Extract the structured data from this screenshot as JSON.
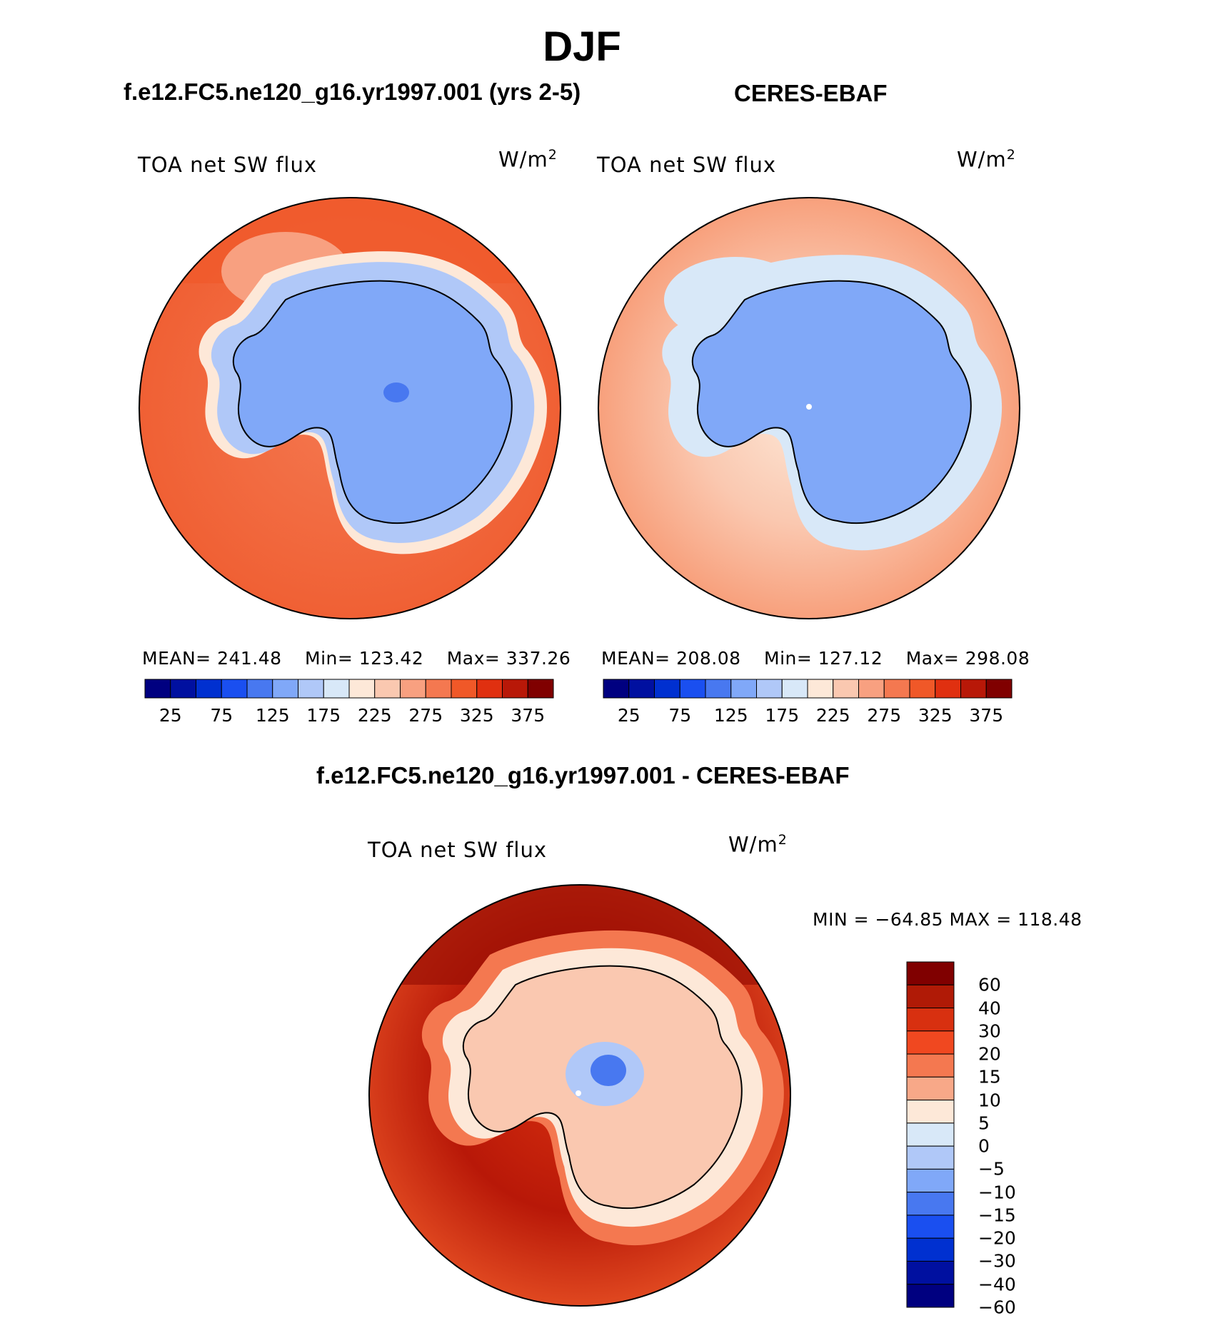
{
  "figure": {
    "title": "DJF",
    "panels": [
      {
        "id": "model",
        "title": "f.e12.FC5.ne120_g16.yr1997.001 (yrs 2-5)",
        "variable": "TOA net SW flux",
        "units_base": "W/m",
        "units_exp": "2",
        "stats": {
          "mean": "MEAN= 241.48",
          "min": "Min= 123.42",
          "max": "Max= 337.26"
        }
      },
      {
        "id": "obs",
        "title": "CERES-EBAF",
        "variable": "TOA net SW flux",
        "units_base": "W/m",
        "units_exp": "2",
        "stats": {
          "mean": "MEAN= 208.08",
          "min": "Min= 127.12",
          "max": "Max= 298.08"
        }
      },
      {
        "id": "diff",
        "title": "f.e12.FC5.ne120_g16.yr1997.001 - CERES-EBAF",
        "variable": "TOA net SW flux",
        "units_base": "W/m",
        "units_exp": "2",
        "range_text": "MIN = −64.85 MAX = 118.48"
      }
    ]
  },
  "chart_data": {
    "type": "heatmap",
    "projection": "south polar stereographic",
    "region": "Antarctica / Southern Ocean",
    "season": "DJF",
    "abs_colorbar": {
      "orientation": "horizontal",
      "tick_labels": [
        "25",
        "75",
        "125",
        "175",
        "225",
        "275",
        "325",
        "375"
      ],
      "levels": [
        0,
        25,
        50,
        75,
        100,
        125,
        150,
        175,
        200,
        225,
        250,
        275,
        300,
        325,
        350,
        375,
        400
      ],
      "colors": [
        "#000080",
        "#0010a0",
        "#0030d0",
        "#1a4ff0",
        "#4878f0",
        "#80a8f8",
        "#b0c8f8",
        "#d8e8f8",
        "#fde8d8",
        "#fac8b0",
        "#f8a080",
        "#f47850",
        "#f05828",
        "#e03010",
        "#b81808",
        "#800000"
      ]
    },
    "diff_colorbar": {
      "orientation": "vertical",
      "tick_labels": [
        "60",
        "40",
        "30",
        "20",
        "15",
        "10",
        "5",
        "0",
        "−5",
        "−10",
        "−15",
        "−20",
        "−30",
        "−40",
        "−60"
      ],
      "colors_top_to_bottom": [
        "#800000",
        "#b01a06",
        "#d83010",
        "#f04820",
        "#f47850",
        "#f8a888",
        "#fde8d8",
        "#d8e8f8",
        "#b0c8f8",
        "#80a8f8",
        "#4878f0",
        "#1a4ff0",
        "#0030d0",
        "#0010a0",
        "#000080"
      ]
    },
    "fields": {
      "model": {
        "mean": 241.48,
        "min": 123.42,
        "max": 337.26
      },
      "obs": {
        "mean": 208.08,
        "min": 127.12,
        "max": 298.08
      },
      "diff": {
        "min": -64.85,
        "max": 118.48
      }
    }
  }
}
